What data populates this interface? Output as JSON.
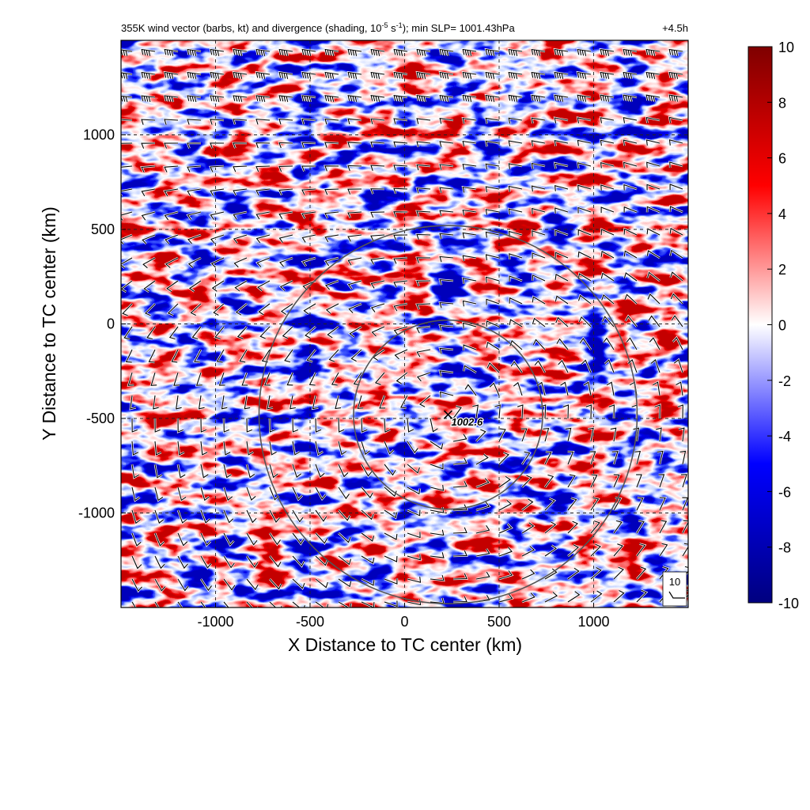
{
  "chart_data": {
    "type": "heatmap",
    "title_main": "355K wind vector (barbs, kt) and divergence (shading, 10",
    "title_exp1": "-5",
    "title_mid": " s",
    "title_exp2": "-1",
    "title_tail": "); min SLP= 1001.43hPa",
    "time_label": "+4.5h",
    "xlabel": "X Distance to TC center (km)",
    "ylabel": "Y Distance to TC center (km)",
    "xlim": [
      -1500,
      1500
    ],
    "ylim": [
      -1500,
      1500
    ],
    "x_ticks": [
      -1000,
      -500,
      0,
      500,
      1000
    ],
    "y_ticks": [
      1000,
      500,
      0,
      -500,
      -1000
    ],
    "grid": true,
    "colorbar": {
      "range": [
        -10,
        10
      ],
      "ticks": [
        10,
        8,
        6,
        4,
        2,
        0,
        -2,
        -4,
        -6,
        -8,
        -10
      ],
      "colors": [
        "#00007f",
        "#0000ff",
        "#ffffff",
        "#ff0000",
        "#7f0000"
      ]
    },
    "center_marker": {
      "x": 230,
      "y": -480,
      "label": "1002.6"
    },
    "circles": [
      {
        "x": 230,
        "y": -480,
        "radius_km": 500
      },
      {
        "x": 230,
        "y": -480,
        "radius_km": 1000
      }
    ],
    "barb_key": {
      "label": "10"
    }
  }
}
